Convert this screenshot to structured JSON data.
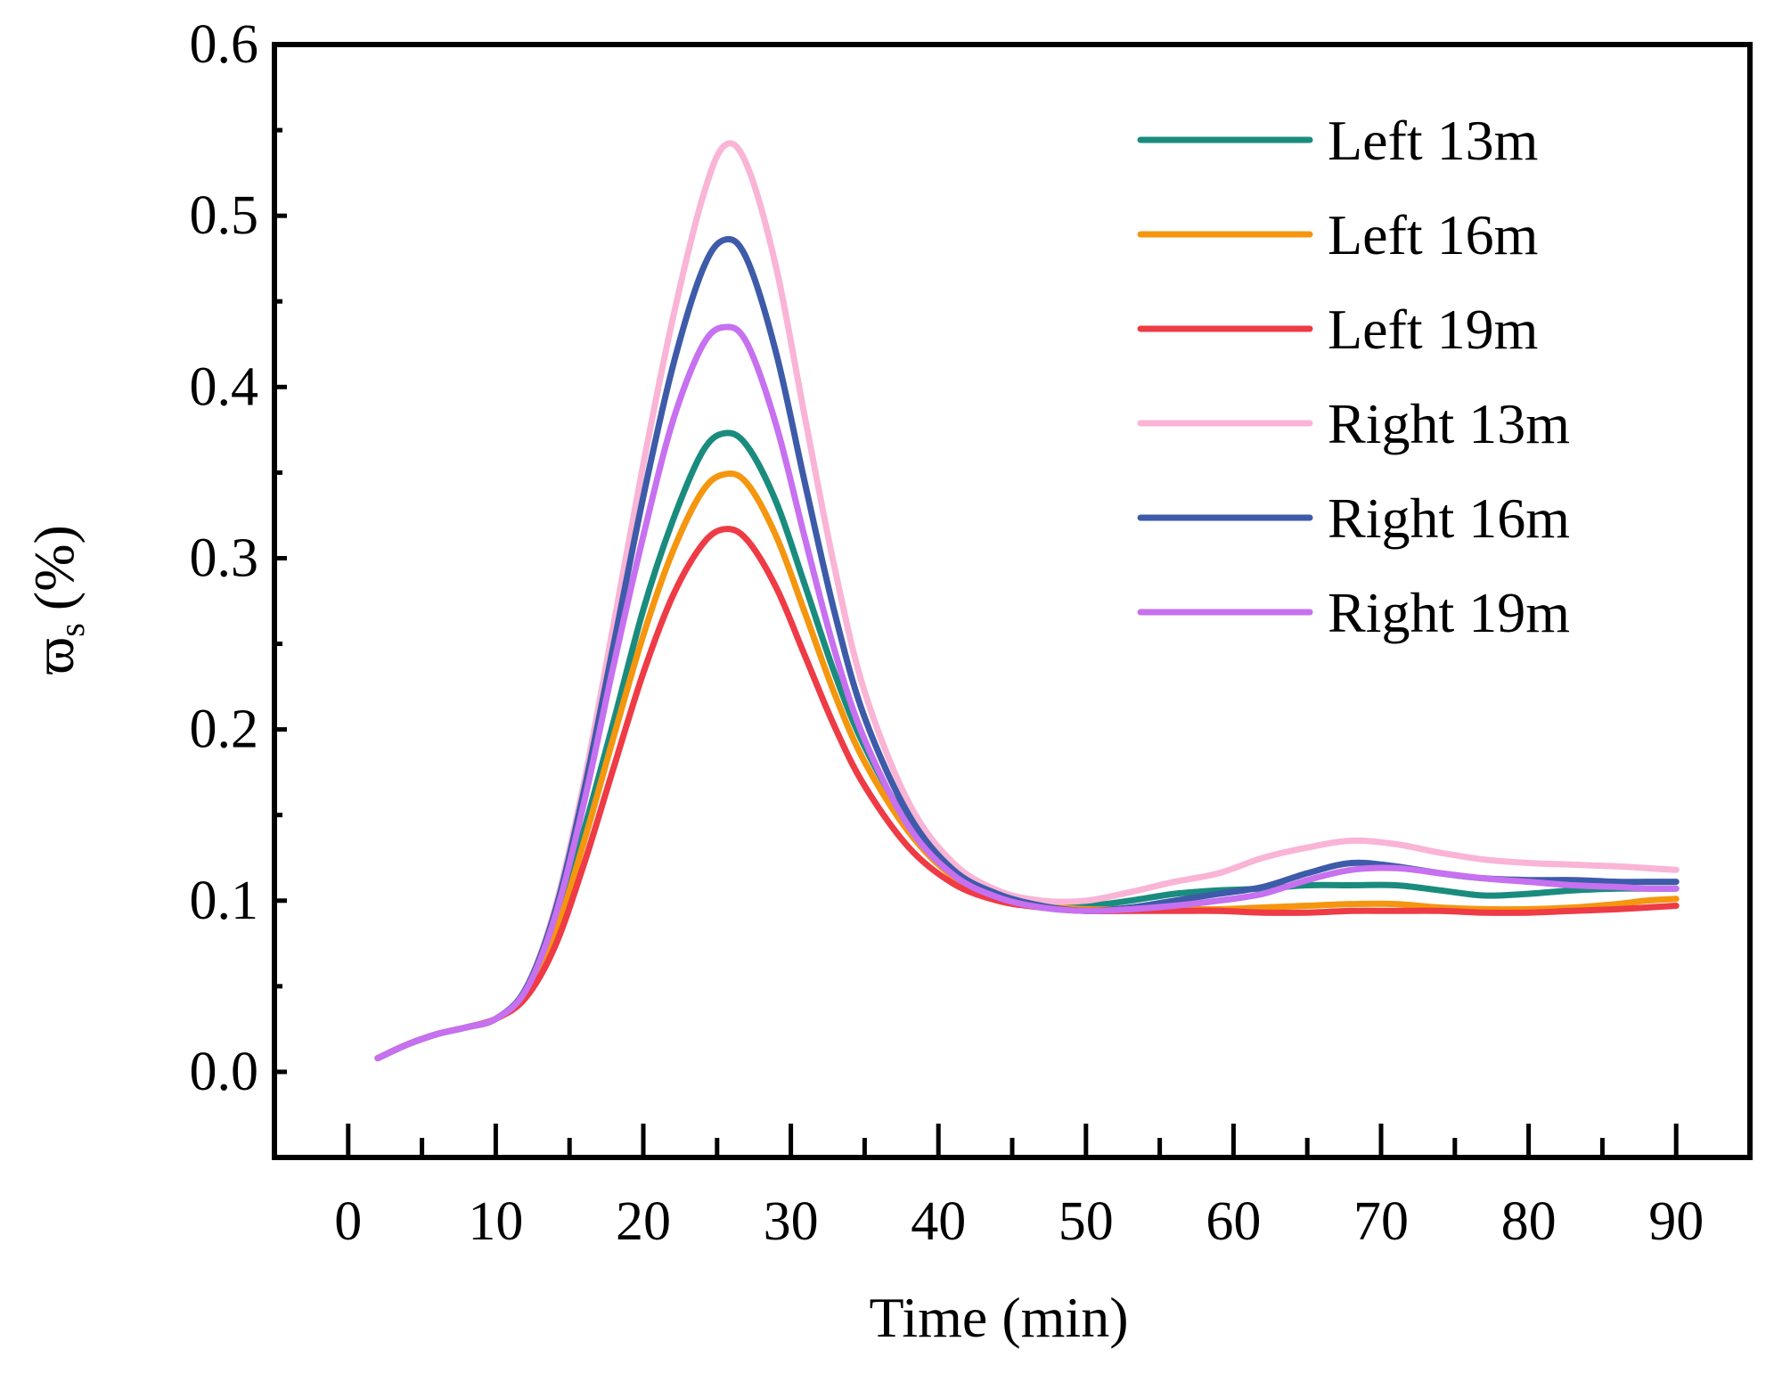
{
  "chart_data": {
    "type": "line",
    "title": "",
    "xlabel": "Time (min)",
    "ylabel_main": "ϖ",
    "ylabel_sub": "s",
    "ylabel_unit": "(%)",
    "xlim": [
      -5,
      95
    ],
    "ylim": [
      -0.05,
      0.6
    ],
    "xticks": [
      0,
      10,
      20,
      30,
      40,
      50,
      60,
      70,
      80,
      90
    ],
    "xtick_labels": [
      "0",
      "10",
      "20",
      "30",
      "40",
      "50",
      "60",
      "70",
      "80",
      "90"
    ],
    "yticks": [
      0.0,
      0.1,
      0.2,
      0.3,
      0.4,
      0.5,
      0.6
    ],
    "ytick_labels": [
      "0.0",
      "0.1",
      "0.2",
      "0.3",
      "0.4",
      "0.5",
      "0.6"
    ],
    "legend_position": "top-right",
    "x": [
      2,
      4,
      6,
      8,
      10,
      12,
      14,
      16,
      18,
      20,
      22,
      24,
      25.5,
      27,
      29,
      31,
      33,
      35,
      38,
      41,
      44,
      47,
      50,
      53,
      56,
      59,
      62,
      65,
      68,
      71,
      74,
      77,
      80,
      83,
      86,
      88,
      90
    ],
    "series": [
      {
        "name": "Left 13m",
        "color": "#1a8c7e",
        "values": [
          0.008,
          0.016,
          0.022,
          0.026,
          0.031,
          0.047,
          0.085,
          0.142,
          0.205,
          0.27,
          0.322,
          0.362,
          0.373,
          0.366,
          0.333,
          0.283,
          0.232,
          0.19,
          0.145,
          0.117,
          0.104,
          0.098,
          0.097,
          0.1,
          0.104,
          0.106,
          0.107,
          0.109,
          0.109,
          0.109,
          0.106,
          0.103,
          0.104,
          0.106,
          0.107,
          0.107,
          0.107
        ]
      },
      {
        "name": "Left 16m",
        "color": "#f5960f",
        "values": [
          0.008,
          0.016,
          0.022,
          0.026,
          0.031,
          0.045,
          0.08,
          0.135,
          0.196,
          0.255,
          0.304,
          0.339,
          0.349,
          0.344,
          0.313,
          0.267,
          0.22,
          0.181,
          0.14,
          0.114,
          0.102,
          0.097,
          0.095,
          0.095,
          0.095,
          0.095,
          0.096,
          0.097,
          0.098,
          0.098,
          0.096,
          0.095,
          0.095,
          0.096,
          0.098,
          0.1,
          0.101
        ]
      },
      {
        "name": "Left 19m",
        "color": "#ee3b45",
        "values": [
          0.008,
          0.016,
          0.022,
          0.026,
          0.031,
          0.043,
          0.073,
          0.122,
          0.178,
          0.233,
          0.278,
          0.308,
          0.317,
          0.311,
          0.283,
          0.242,
          0.201,
          0.167,
          0.131,
          0.11,
          0.1,
          0.096,
          0.094,
          0.094,
          0.094,
          0.094,
          0.093,
          0.093,
          0.094,
          0.094,
          0.094,
          0.093,
          0.093,
          0.094,
          0.095,
          0.096,
          0.097
        ]
      },
      {
        "name": "Right 13m",
        "color": "#f9b4d6",
        "values": [
          0.008,
          0.016,
          0.022,
          0.026,
          0.031,
          0.048,
          0.095,
          0.17,
          0.262,
          0.355,
          0.44,
          0.51,
          0.541,
          0.53,
          0.47,
          0.38,
          0.293,
          0.222,
          0.157,
          0.122,
          0.106,
          0.1,
          0.1,
          0.105,
          0.111,
          0.116,
          0.125,
          0.131,
          0.135,
          0.133,
          0.128,
          0.124,
          0.122,
          0.121,
          0.12,
          0.119,
          0.118
        ]
      },
      {
        "name": "Right 16m",
        "color": "#3d5ba8",
        "values": [
          0.008,
          0.016,
          0.022,
          0.026,
          0.031,
          0.048,
          0.093,
          0.165,
          0.25,
          0.336,
          0.412,
          0.468,
          0.486,
          0.475,
          0.42,
          0.342,
          0.267,
          0.207,
          0.15,
          0.118,
          0.104,
          0.097,
          0.094,
          0.096,
          0.1,
          0.104,
          0.108,
          0.116,
          0.122,
          0.12,
          0.116,
          0.113,
          0.112,
          0.112,
          0.111,
          0.111,
          0.111
        ]
      },
      {
        "name": "Right 19m",
        "color": "#c770f0",
        "values": [
          0.008,
          0.016,
          0.022,
          0.026,
          0.031,
          0.047,
          0.09,
          0.158,
          0.238,
          0.313,
          0.38,
          0.424,
          0.435,
          0.426,
          0.378,
          0.31,
          0.245,
          0.194,
          0.143,
          0.115,
          0.102,
          0.096,
          0.094,
          0.095,
          0.097,
          0.1,
          0.104,
          0.112,
          0.118,
          0.119,
          0.116,
          0.113,
          0.111,
          0.109,
          0.108,
          0.107,
          0.107
        ]
      }
    ]
  }
}
